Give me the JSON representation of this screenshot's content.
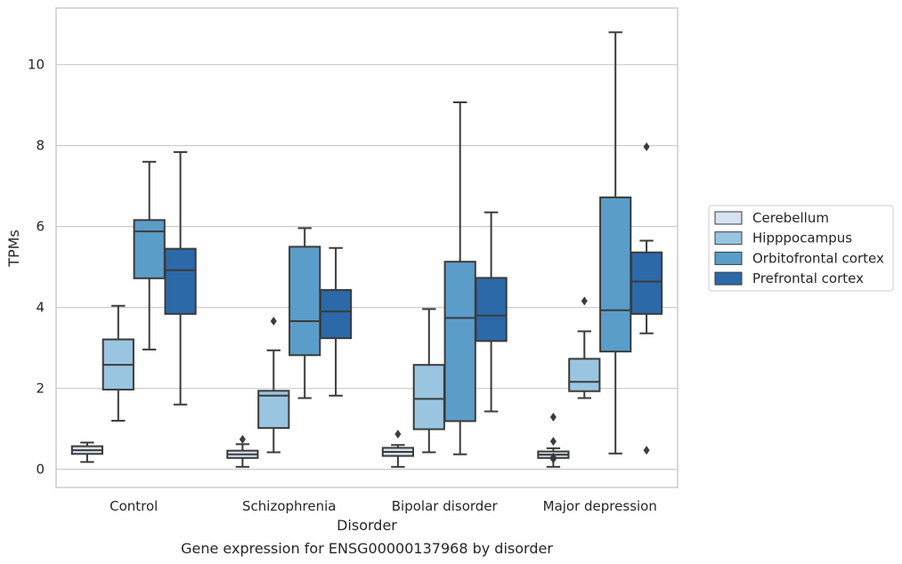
{
  "chart_data": {
    "type": "box",
    "title": "",
    "caption": "Gene expression for ENSG00000137968 by disorder",
    "xlabel": "Disorder",
    "ylabel": "TPMs",
    "ylim": [
      -0.45,
      11.4
    ],
    "yticks": [
      0,
      2,
      4,
      6,
      8,
      10
    ],
    "grid": "horizontal",
    "legend_position": "right",
    "categories": [
      "Control",
      "Schizophrenia",
      "Bipolar disorder",
      "Major depression"
    ],
    "series": [
      {
        "name": "Cerebellum",
        "color": "#d5e2ef",
        "boxes": [
          {
            "whisker_low": 0.18,
            "q1": 0.38,
            "median": 0.47,
            "q3": 0.57,
            "whisker_high": 0.66,
            "outliers": []
          },
          {
            "whisker_low": 0.06,
            "q1": 0.28,
            "median": 0.37,
            "q3": 0.46,
            "whisker_high": 0.62,
            "outliers": [
              0.74
            ]
          },
          {
            "whisker_low": 0.06,
            "q1": 0.33,
            "median": 0.43,
            "q3": 0.53,
            "whisker_high": 0.6,
            "outliers": [
              0.87
            ]
          },
          {
            "whisker_low": 0.06,
            "q1": 0.28,
            "median": 0.36,
            "q3": 0.44,
            "whisker_high": 0.52,
            "outliers": [
              1.29,
              0.69,
              0.3,
              0.25
            ]
          }
        ]
      },
      {
        "name": "Hipppocampus",
        "color": "#9ac5e0",
        "boxes": [
          {
            "whisker_low": 1.2,
            "q1": 1.97,
            "median": 2.58,
            "q3": 3.21,
            "whisker_high": 4.04,
            "outliers": []
          },
          {
            "whisker_low": 0.42,
            "q1": 1.02,
            "median": 1.82,
            "q3": 1.94,
            "whisker_high": 2.94,
            "outliers": [
              3.66
            ]
          },
          {
            "whisker_low": 0.42,
            "q1": 0.99,
            "median": 1.74,
            "q3": 2.58,
            "whisker_high": 3.96,
            "outliers": []
          },
          {
            "whisker_low": 1.76,
            "q1": 1.93,
            "median": 2.16,
            "q3": 2.73,
            "whisker_high": 3.41,
            "outliers": [
              4.16
            ]
          }
        ]
      },
      {
        "name": "Orbitofrontal cortex",
        "color": "#5b9dc9",
        "boxes": [
          {
            "whisker_low": 2.96,
            "q1": 4.72,
            "median": 5.88,
            "q3": 6.16,
            "whisker_high": 7.6,
            "outliers": []
          },
          {
            "whisker_low": 1.76,
            "q1": 2.82,
            "median": 3.66,
            "q3": 5.5,
            "whisker_high": 5.96,
            "outliers": []
          },
          {
            "whisker_low": 0.37,
            "q1": 1.19,
            "median": 3.74,
            "q3": 5.13,
            "whisker_high": 9.07,
            "outliers": []
          },
          {
            "whisker_low": 0.39,
            "q1": 2.91,
            "median": 3.93,
            "q3": 6.72,
            "whisker_high": 10.8,
            "outliers": []
          }
        ]
      },
      {
        "name": "Prefrontal cortex",
        "color": "#2c69a9",
        "boxes": [
          {
            "whisker_low": 1.6,
            "q1": 3.84,
            "median": 4.92,
            "q3": 5.45,
            "whisker_high": 7.84,
            "outliers": []
          },
          {
            "whisker_low": 1.82,
            "q1": 3.24,
            "median": 3.9,
            "q3": 4.43,
            "whisker_high": 5.47,
            "outliers": []
          },
          {
            "whisker_low": 1.43,
            "q1": 3.17,
            "median": 3.8,
            "q3": 4.73,
            "whisker_high": 6.35,
            "outliers": []
          },
          {
            "whisker_low": 3.36,
            "q1": 3.84,
            "median": 4.64,
            "q3": 5.36,
            "whisker_high": 5.65,
            "outliers": [
              7.97,
              0.47
            ]
          }
        ]
      }
    ]
  }
}
